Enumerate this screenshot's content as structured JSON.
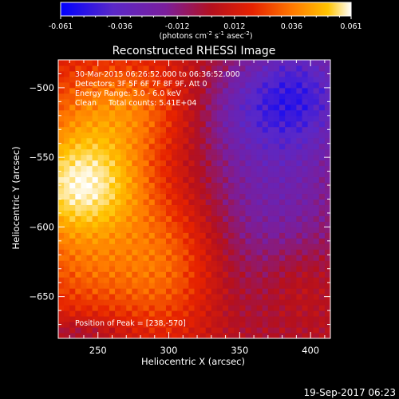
{
  "chart_data": {
    "type": "heatmap",
    "title": "Reconstructed RHESSI Image",
    "xlabel": "Heliocentric X (arcsec)",
    "ylabel": "Heliocentric Y (arcsec)",
    "xlim": [
      222,
      414
    ],
    "ylim": [
      -680,
      -480
    ],
    "x_ticks": [
      250,
      300,
      350,
      400
    ],
    "y_ticks": [
      -500,
      -550,
      -600,
      -650
    ],
    "colorbar": {
      "min": -0.061,
      "max": 0.061,
      "ticks": [
        "-0.061",
        "-0.036",
        "-0.012",
        "0.012",
        "0.036",
        "0.061"
      ],
      "label": "(photons cm",
      "label_sup1": "-2",
      "label_mid": " s",
      "label_sup2": "-1",
      "label_mid2": " asec",
      "label_sup3": "-2",
      "label_end": ")"
    },
    "annotations": [
      "30-Mar-2015 06:26:52.000 to 06:36:52.000",
      "Detectors: 3F 5F 6F 7F 8F 9F, Att 0",
      "Energy Range: 3.0 - 6.0 keV",
      "Clean     Total counts: 5.41E+04"
    ],
    "peak_label": "Position of Peak = [238,-570]",
    "peak": [
      238,
      -570
    ],
    "colormap": [
      "#0000ff",
      "#5a28c8",
      "#7a1e9c",
      "#b4101e",
      "#e62200",
      "#ff7a00",
      "#ffc400",
      "#ffffff"
    ]
  },
  "footer": {
    "timestamp": "19-Sep-2017 06:23"
  }
}
